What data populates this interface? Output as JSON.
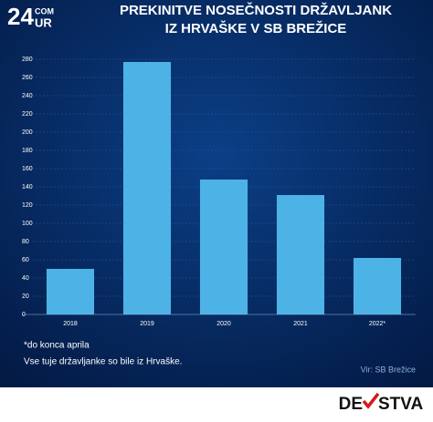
{
  "chart_data": {
    "type": "bar",
    "title": [
      "PREKINITVE NOSEČNOSTI DRŽAVLJANK",
      "IZ HRVAŠKE V SB BREŽICE"
    ],
    "categories": [
      "2018",
      "2019",
      "2020",
      "2021",
      "2022*"
    ],
    "values": [
      50,
      277,
      148,
      131,
      62
    ],
    "color": "#4db3e6",
    "ylim": [
      0,
      280
    ],
    "yticks": [
      0,
      20,
      40,
      60,
      80,
      100,
      120,
      140,
      160,
      180,
      200,
      220,
      240,
      260,
      280
    ],
    "grid": true,
    "annotations": [
      "*do konca aprila",
      "Vse tuje državljanke so bile iz Hrvaške.",
      "Vir: SB Brežice"
    ]
  },
  "logo": {
    "number": "24",
    "top": "COM",
    "bottom": "UR"
  },
  "brand": {
    "left": "DE",
    "right": "STVA"
  }
}
